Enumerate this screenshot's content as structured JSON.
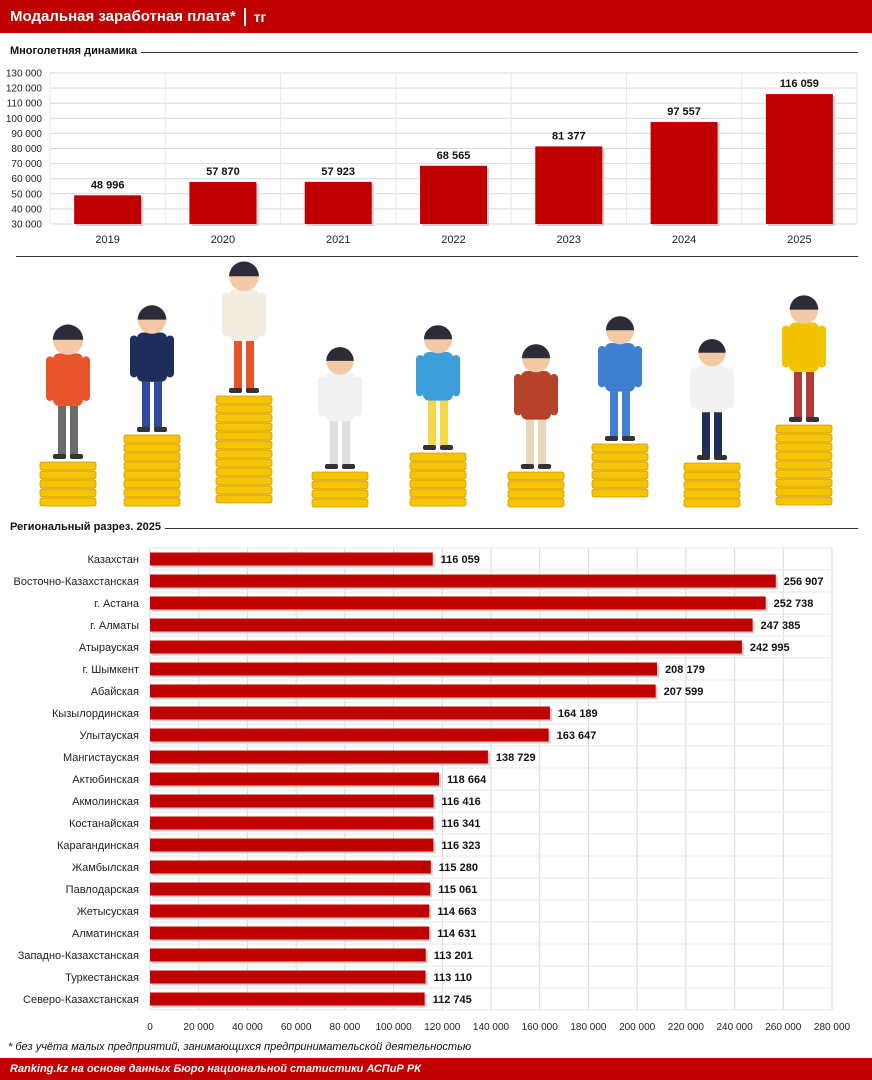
{
  "header": {
    "title": "Модальная заработная плата*",
    "unit": "тг"
  },
  "section1": {
    "title": "Многолетняя динамика"
  },
  "section2": {
    "title": "Региональный разрез. 2025"
  },
  "footnote": "* без учёта малых предприятий, занимающихся предпринимательской деятельностью",
  "source": "Ranking.kz на основе данных Бюро национальной статистики АСПиР РК",
  "colors": {
    "bar": "#c00000",
    "header": "#c00000",
    "coin": "#f5c400"
  },
  "chart_data": [
    {
      "type": "bar",
      "title": "Многолетняя динамика",
      "categories": [
        "2019",
        "2020",
        "2021",
        "2022",
        "2023",
        "2024",
        "2025"
      ],
      "values": [
        48996,
        57870,
        57923,
        68565,
        81377,
        97557,
        116059
      ],
      "value_labels": [
        "48 996",
        "57 870",
        "57 923",
        "68 565",
        "81 377",
        "97 557",
        "116 059"
      ],
      "ylim": [
        30000,
        130000
      ],
      "yticks": [
        "30 000",
        "40 000",
        "50 000",
        "60 000",
        "70 000",
        "80 000",
        "90 000",
        "100 000",
        "110 000",
        "120 000",
        "130 000"
      ],
      "ytick_values": [
        30000,
        40000,
        50000,
        60000,
        70000,
        80000,
        90000,
        100000,
        110000,
        120000,
        130000
      ],
      "grid": true
    },
    {
      "type": "bar",
      "orientation": "horizontal",
      "title": "Региональный разрез. 2025",
      "categories": [
        "Казахстан",
        "Восточно-Казахстанская",
        "г. Астана",
        "г. Алматы",
        "Атырауская",
        "г. Шымкент",
        "Абайская",
        "Кызылординская",
        "Улытауская",
        "Мангистауская",
        "Актюбинская",
        "Акмолинская",
        "Костанайская",
        "Карагандинская",
        "Жамбылская",
        "Павлодарская",
        "Жетысуская",
        "Алматинская",
        "Западно-Казахстанская",
        "Туркестанская",
        "Северо-Казахстанская"
      ],
      "values": [
        116059,
        256907,
        252738,
        247385,
        242995,
        208179,
        207599,
        164189,
        163647,
        138729,
        118664,
        116416,
        116341,
        116323,
        115280,
        115061,
        114663,
        114631,
        113201,
        113110,
        112745
      ],
      "value_labels": [
        "116 059",
        "256 907",
        "252 738",
        "247 385",
        "242 995",
        "208 179",
        "207 599",
        "164 189",
        "163 647",
        "138 729",
        "118 664",
        "116 416",
        "116 341",
        "116 323",
        "115 280",
        "115 061",
        "114 663",
        "114 631",
        "113 201",
        "113 110",
        "112 745"
      ],
      "xlim": [
        0,
        280000
      ],
      "xticks": [
        "0",
        "20 000",
        "40 000",
        "60 000",
        "80 000",
        "100 000",
        "120 000",
        "140 000",
        "160 000",
        "180 000",
        "200 000",
        "220 000",
        "240 000",
        "260 000",
        "280 000"
      ],
      "xtick_values": [
        0,
        20000,
        40000,
        60000,
        80000,
        100000,
        120000,
        140000,
        160000,
        180000,
        200000,
        220000,
        240000,
        260000,
        280000
      ],
      "grid": true
    }
  ]
}
